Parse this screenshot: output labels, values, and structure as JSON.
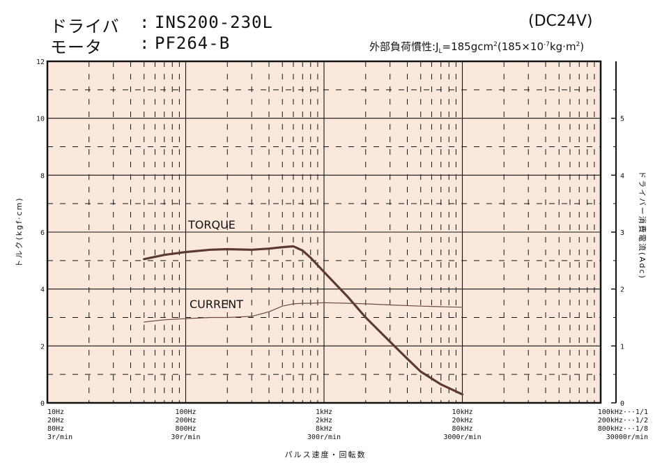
{
  "header": {
    "driver_label": "ドライバ",
    "driver_value": "INS200-230L",
    "motor_label": "モータ",
    "motor_value": "PF264-B",
    "colon": ":",
    "supply": "(DC24V)",
    "inertia_prefix": "外部負荷慣性:",
    "inertia_text": "J",
    "inertia_sub": "L",
    "inertia_value": "=185gcm",
    "inertia_sup": "2",
    "inertia_paren_open": "(185×10",
    "inertia_exp": "-7",
    "inertia_unit": "kg·m",
    "inertia_unit_sup": "2",
    "inertia_paren_close": ")"
  },
  "chart_data": {
    "type": "line",
    "x_scale": "log",
    "xlim": [
      10,
      100000
    ],
    "ylabel": "トルク(kgf·cm)",
    "ylim": [
      0,
      12
    ],
    "y_ticks": [
      0,
      2,
      4,
      6,
      8,
      10,
      12
    ],
    "y2label": "ドライバー消費電流(Adc)",
    "y2lim": [
      0,
      6
    ],
    "y2_ticks": [
      0,
      1,
      2,
      3,
      4,
      5
    ],
    "xlabel": "パルス速度・回転数",
    "x_tick_labels": [
      {
        "x": 10,
        "lines": [
          "10Hz",
          "20Hz",
          "80Hz",
          "3r/min"
        ]
      },
      {
        "x": 100,
        "lines": [
          "100Hz",
          "200Hz",
          "800Hz",
          "30r/min"
        ]
      },
      {
        "x": 1000,
        "lines": [
          "1kHz",
          "2kHz",
          "8kHz",
          "300r/min"
        ]
      },
      {
        "x": 10000,
        "lines": [
          "10kHz",
          "20kHz",
          "80kHz",
          "3000r/min"
        ]
      },
      {
        "x": 100000,
        "lines": [
          "100kHz···1/1",
          "200kHz···1/2",
          "800kHz···1/8",
          "30000r/min"
        ]
      }
    ],
    "grid": true,
    "series": [
      {
        "name": "TORQUE",
        "axis": "left",
        "color": "#5a3a32",
        "x": [
          50,
          70,
          100,
          150,
          200,
          300,
          400,
          500,
          600,
          700,
          800,
          1000,
          1500,
          2000,
          3000,
          4000,
          5000,
          7000,
          10000
        ],
        "y": [
          5.05,
          5.2,
          5.3,
          5.38,
          5.4,
          5.38,
          5.42,
          5.47,
          5.5,
          5.35,
          5.1,
          4.6,
          3.7,
          3.0,
          2.15,
          1.55,
          1.1,
          0.65,
          0.3
        ]
      },
      {
        "name": "CURRENT",
        "axis": "right",
        "color": "#6a4a42",
        "x": [
          50,
          70,
          100,
          150,
          200,
          300,
          400,
          500,
          600,
          700,
          800,
          1000,
          1500,
          2000,
          3000,
          5000,
          7000,
          10000
        ],
        "y": [
          1.42,
          1.46,
          1.48,
          1.5,
          1.5,
          1.52,
          1.6,
          1.7,
          1.74,
          1.75,
          1.75,
          1.76,
          1.75,
          1.74,
          1.72,
          1.7,
          1.69,
          1.68
        ]
      }
    ]
  }
}
